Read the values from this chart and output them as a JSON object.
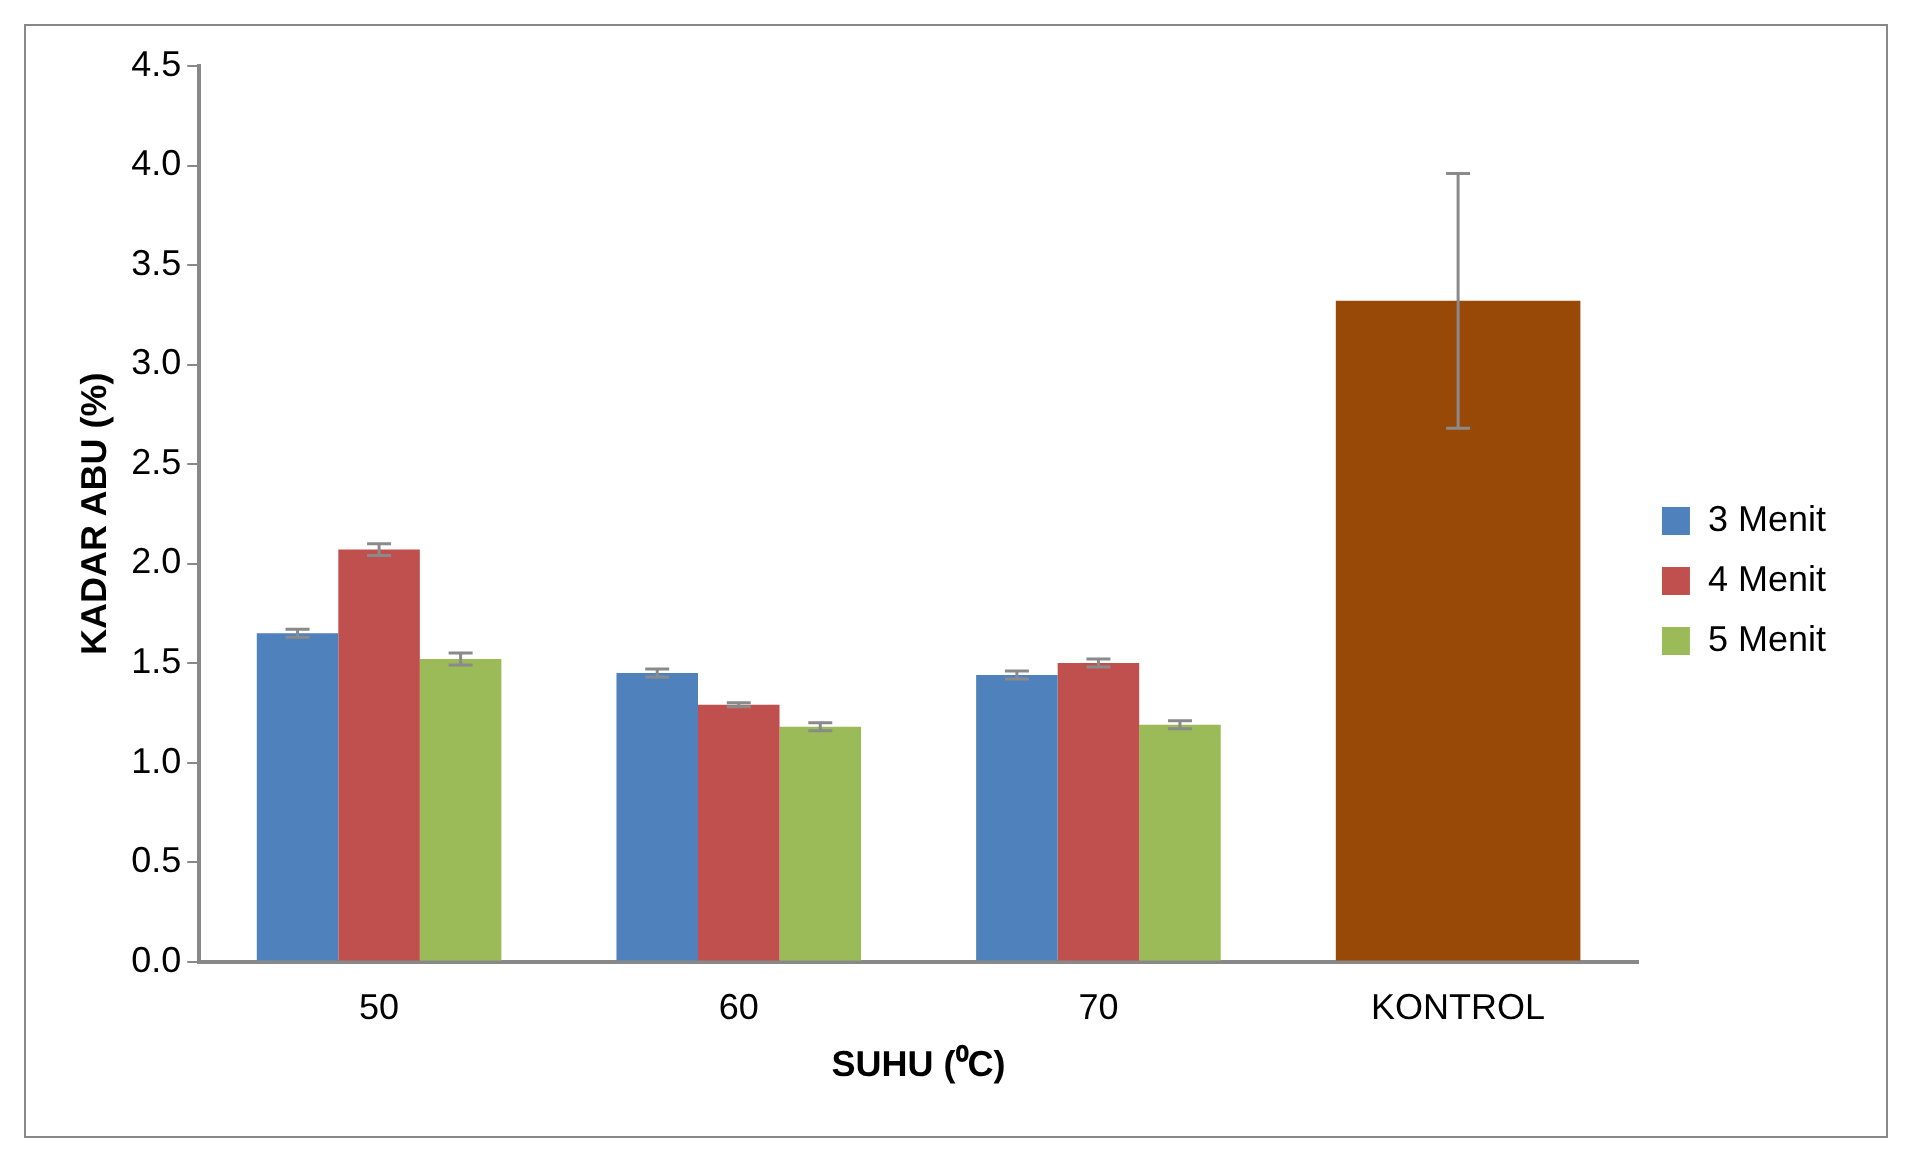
{
  "chart_data": {
    "type": "bar",
    "xlabel": "SUHU (⁰C)",
    "ylabel": "KADAR ABU (%)",
    "categories": [
      "50",
      "60",
      "70",
      "KONTROL"
    ],
    "series": [
      {
        "name": "3 Menit",
        "color": "#4f81bd",
        "values": [
          1.65,
          1.45,
          1.44,
          null
        ],
        "errors": [
          0.02,
          0.02,
          0.02,
          null
        ]
      },
      {
        "name": "4 Menit",
        "color": "#c0504d",
        "values": [
          2.07,
          1.29,
          1.5,
          null
        ],
        "errors": [
          0.03,
          0.01,
          0.02,
          null
        ]
      },
      {
        "name": "5 Menit",
        "color": "#9bbb59",
        "values": [
          1.52,
          1.18,
          1.19,
          null
        ],
        "errors": [
          0.03,
          0.02,
          0.02,
          null
        ]
      },
      {
        "color": "#984807",
        "values": [
          null,
          null,
          null,
          3.32
        ],
        "errors": [
          null,
          null,
          null,
          0.64
        ]
      }
    ],
    "ylim": [
      0,
      4.5
    ],
    "yticks": [
      {
        "value": 0,
        "label": "0.0"
      },
      {
        "value": 0.5,
        "label": "0.5"
      },
      {
        "value": 1,
        "label": "1.0"
      },
      {
        "value": 1.5,
        "label": "1.5"
      },
      {
        "value": 2,
        "label": "2.0"
      },
      {
        "value": 2.5,
        "label": "2.5"
      },
      {
        "value": 3,
        "label": "3.0"
      },
      {
        "value": 3.5,
        "label": "3.5"
      },
      {
        "value": 4,
        "label": "4.0"
      },
      {
        "value": 4.5,
        "label": "4.5"
      }
    ],
    "grid": false,
    "legend": "right"
  }
}
